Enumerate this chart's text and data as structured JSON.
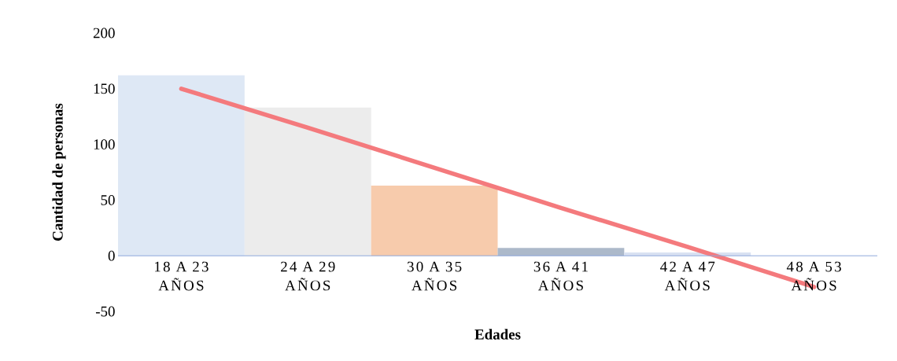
{
  "chart_data": {
    "type": "bar",
    "xlabel": "Edades",
    "ylabel": "Cantidad de personas",
    "categories": [
      "18 A 23 AÑOS",
      "24 A 29 AÑOS",
      "30 A 35 AÑOS",
      "36 A 41 AÑOS",
      "42 A 47 AÑOS",
      "48 A 53 AÑOS"
    ],
    "series": [
      {
        "colors": [
          "#dee8f5",
          "#ececec",
          "#f7cbac",
          "#acb9ca",
          "#d9e1f2",
          "#dee8f5"
        ],
        "values": [
          162,
          133,
          63,
          7,
          3,
          0
        ]
      },
      {
        "type": "line",
        "color": "#f47a7d",
        "values": [
          150,
          115,
          79,
          43,
          8,
          -28
        ]
      }
    ],
    "ylim": [
      -50,
      200
    ],
    "yticks": [
      -50,
      0,
      50,
      100,
      150,
      200
    ]
  }
}
